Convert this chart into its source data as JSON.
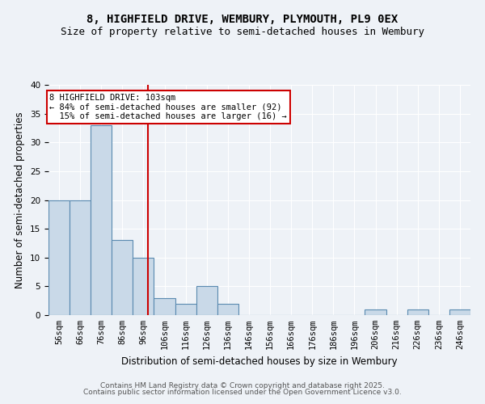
{
  "title": "8, HIGHFIELD DRIVE, WEMBURY, PLYMOUTH, PL9 0EX",
  "subtitle": "Size of property relative to semi-detached houses in Wembury",
  "xlabel": "Distribution of semi-detached houses by size in Wembury",
  "ylabel": "Number of semi-detached properties",
  "bin_edges": [
    56,
    66,
    76,
    86,
    96,
    106,
    116,
    126,
    136,
    146,
    156,
    166,
    176,
    186,
    196,
    206,
    216,
    226,
    236,
    246,
    256
  ],
  "bar_heights": [
    20,
    20,
    33,
    13,
    10,
    3,
    2,
    5,
    2,
    0,
    0,
    0,
    0,
    0,
    0,
    1,
    0,
    1,
    0,
    1
  ],
  "bar_color": "#c9d9e8",
  "bar_edge_color": "#5a8ab0",
  "property_size": 103,
  "red_line_color": "#cc0000",
  "annotation_text": "8 HIGHFIELD DRIVE: 103sqm\n← 84% of semi-detached houses are smaller (92)\n  15% of semi-detached houses are larger (16) →",
  "annotation_box_color": "#ffffff",
  "annotation_box_edge_color": "#cc0000",
  "ylim": [
    0,
    40
  ],
  "yticks": [
    0,
    5,
    10,
    15,
    20,
    25,
    30,
    35,
    40
  ],
  "footer_line1": "Contains HM Land Registry data © Crown copyright and database right 2025.",
  "footer_line2": "Contains public sector information licensed under the Open Government Licence v3.0.",
  "bg_color": "#eef2f7",
  "grid_color": "#ffffff",
  "title_fontsize": 10,
  "subtitle_fontsize": 9,
  "tick_fontsize": 7.5,
  "label_fontsize": 8.5,
  "footer_fontsize": 6.5,
  "annotation_fontsize": 7.5
}
